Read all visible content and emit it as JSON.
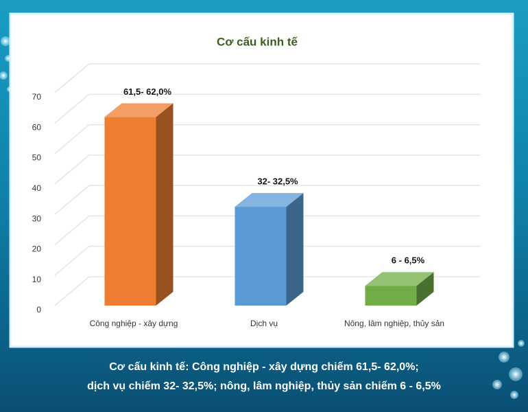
{
  "chart_data": {
    "type": "bar",
    "title": "Cơ cấu kinh tế",
    "categories": [
      "Công nghiệp - xây dựng",
      "Dịch vụ",
      "Nông, lâm nghiệp, thủy sản"
    ],
    "values": [
      62,
      32.5,
      6.5
    ],
    "value_labels": [
      "61,5- 62,0%",
      "32- 32,5%",
      "6 - 6,5%"
    ],
    "colors": [
      "#ed7d31",
      "#5b9bd5",
      "#70ad47"
    ],
    "ylim": [
      0,
      70
    ],
    "yticks": [
      0,
      10,
      20,
      30,
      40,
      50,
      60,
      70
    ],
    "grid": true
  },
  "caption": [
    "Cơ cấu kinh tế: Công nghiệp - xây dựng chiếm 61,5- 62,0%;",
    "dịch vụ chiếm 32- 32,5%; nông, lâm nghiệp, thủy sản chiếm 6 - 6,5%"
  ]
}
